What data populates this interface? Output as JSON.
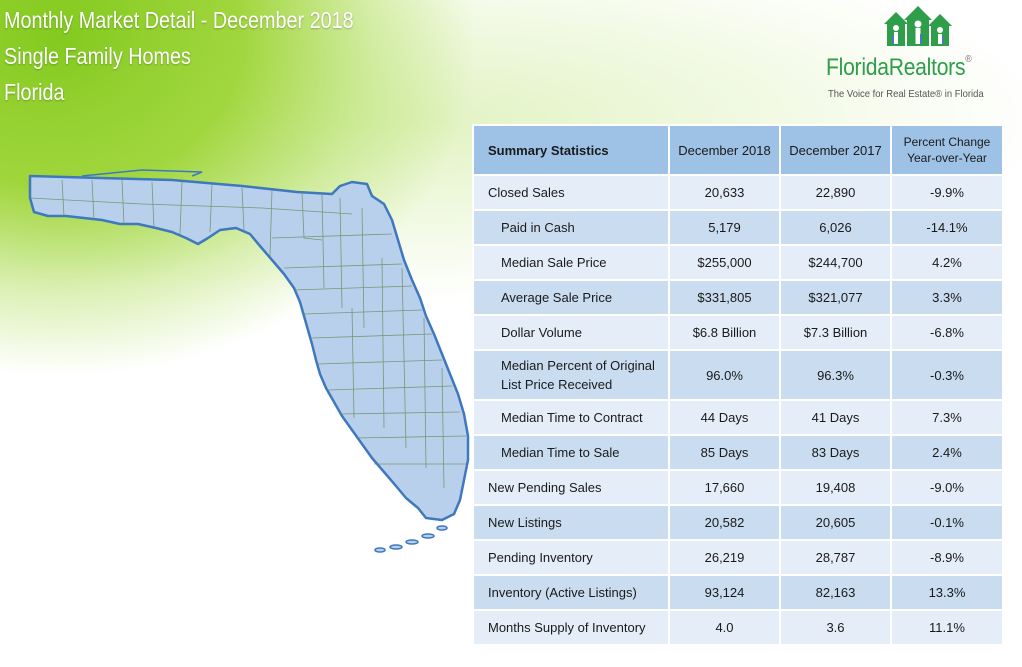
{
  "header": {
    "title_line1": "Monthly Market Detail - December 2018",
    "title_line2": "Single Family Homes",
    "title_line3": "Florida"
  },
  "logo": {
    "name": "FloridaRealtors",
    "registered_mark": "®",
    "tagline": "The Voice for Real Estate® in Florida"
  },
  "map": {
    "label": "Florida county map"
  },
  "table": {
    "headers": {
      "label": "Summary Statistics",
      "col1": "December 2018",
      "col2": "December 2017",
      "col3_line1": "Percent Change",
      "col3_line2": "Year-over-Year"
    },
    "rows": [
      {
        "label": "Closed Sales",
        "dec2018": "20,633",
        "dec2017": "22,890",
        "pct": "-9.9%"
      },
      {
        "label": "Paid in Cash",
        "dec2018": "5,179",
        "dec2017": "6,026",
        "pct": "-14.1%"
      },
      {
        "label": "Median Sale Price",
        "dec2018": "$255,000",
        "dec2017": "$244,700",
        "pct": "4.2%"
      },
      {
        "label": "Average Sale Price",
        "dec2018": "$331,805",
        "dec2017": "$321,077",
        "pct": "3.3%"
      },
      {
        "label": "Dollar Volume",
        "dec2018": "$6.8 Billion",
        "dec2017": "$7.3 Billion",
        "pct": "-6.8%"
      },
      {
        "label_line1": "Median Percent of Original",
        "label_line2": "List Price Received",
        "dec2018": "96.0%",
        "dec2017": "96.3%",
        "pct": "-0.3%"
      },
      {
        "label": "Median Time to Contract",
        "dec2018": "44 Days",
        "dec2017": "41 Days",
        "pct": "7.3%"
      },
      {
        "label": "Median Time to Sale",
        "dec2018": "85 Days",
        "dec2017": "83 Days",
        "pct": "2.4%"
      },
      {
        "label": "New Pending Sales",
        "dec2018": "17,660",
        "dec2017": "19,408",
        "pct": "-9.0%"
      },
      {
        "label": "New Listings",
        "dec2018": "20,582",
        "dec2017": "20,605",
        "pct": "-0.1%"
      },
      {
        "label": "Pending Inventory",
        "dec2018": "26,219",
        "dec2017": "28,787",
        "pct": "-8.9%"
      },
      {
        "label": "Inventory (Active Listings)",
        "dec2018": "93,124",
        "dec2017": "82,163",
        "pct": "13.3%"
      },
      {
        "label": "Months Supply of Inventory",
        "dec2018": "4.0",
        "dec2017": "3.6",
        "pct": "11.1%"
      }
    ]
  },
  "colors": {
    "accent_green": "#8cc63f",
    "table_header": "#9ec1e6",
    "row_light": "#e5eef8",
    "row_dark": "#c9dcf0",
    "map_fill": "#b8d0ec",
    "map_stroke": "#3f78bd",
    "brand_green": "#2e9e4a"
  }
}
